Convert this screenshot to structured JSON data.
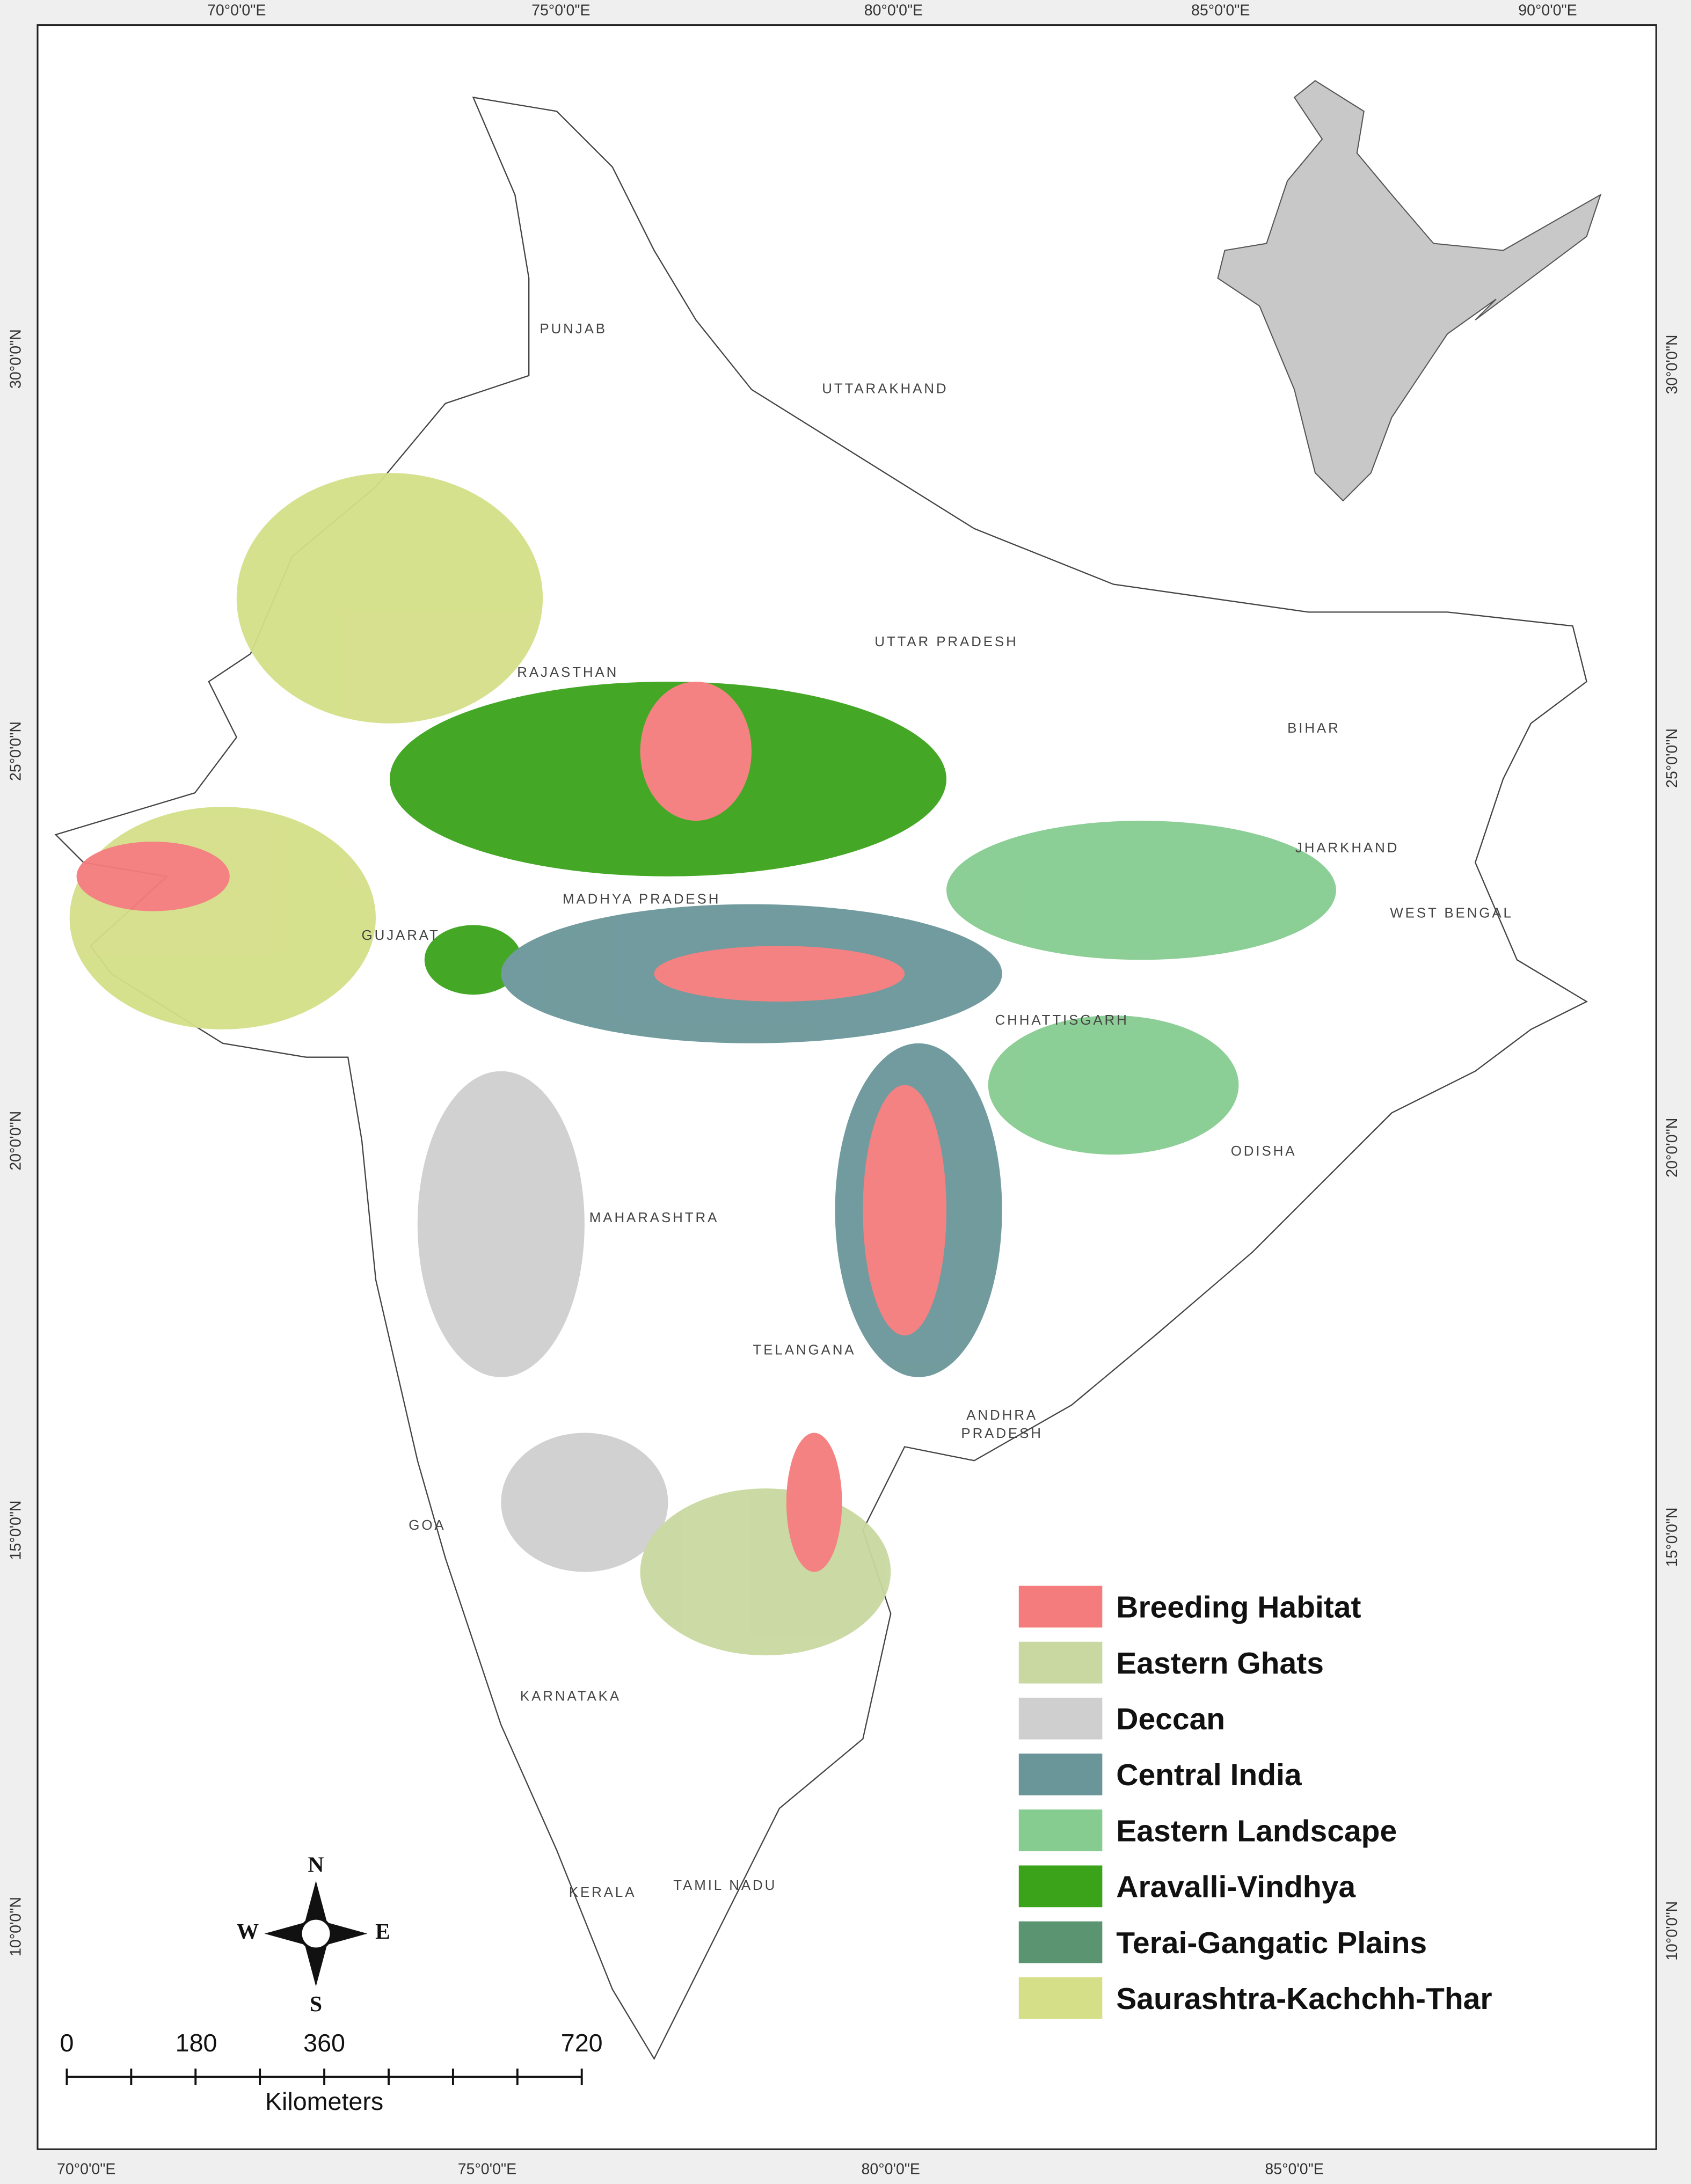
{
  "graticule": {
    "top": [
      "70°0'0\"E",
      "75°0'0\"E",
      "80°0'0\"E",
      "85°0'0\"E",
      "90°0'0\"E"
    ],
    "bottom": [
      "70°0'0\"E",
      "75°0'0\"E",
      "80°0'0\"E",
      "85°0'0\"E"
    ],
    "left": [
      "30°0'0\"N",
      "25°0'0\"N",
      "20°0'0\"N",
      "15°0'0\"N",
      "10°0'0\"N"
    ],
    "right": [
      "30°0'0\"N",
      "25°0'0\"N",
      "20°0'0\"N",
      "15°0'0\"N",
      "10°0'0\"N"
    ]
  },
  "states": [
    "PUNJAB",
    "UTTARAKHAND",
    "UTTAR PRADESH",
    "RAJASTHAN",
    "BIHAR",
    "JHARKHAND",
    "WEST BENGAL",
    "MADHYA PRADESH",
    "GUJARAT",
    "CHHATTISGARH",
    "ODISHA",
    "MAHARASHTRA",
    "TELANGANA",
    "ANDHRA",
    "PRADESH",
    "GOA",
    "KARNATAKA",
    "KERALA",
    "TAMIL NADU"
  ],
  "legend": [
    {
      "label": "Breeding Habitat",
      "color": "#f47c7c"
    },
    {
      "label": "Eastern Ghats",
      "color": "#c9d8a0"
    },
    {
      "label": "Deccan",
      "color": "#cfcfcf"
    },
    {
      "label": "Central India",
      "color": "#6a9699"
    },
    {
      "label": "Eastern Landscape",
      "color": "#86cc90"
    },
    {
      "label": "Aravalli-Vindhya",
      "color": "#3aa31a"
    },
    {
      "label": "Terai-Gangatic Plains",
      "color": "#5a9470"
    },
    {
      "label": "Saurashtra-Kachchh-Thar",
      "color": "#d4df88"
    }
  ],
  "scale_bar": {
    "labels": [
      "0",
      "180",
      "360",
      "720"
    ],
    "unit": "Kilometers"
  },
  "compass": {
    "north": "N",
    "south": "S",
    "east": "E",
    "west": "W"
  }
}
